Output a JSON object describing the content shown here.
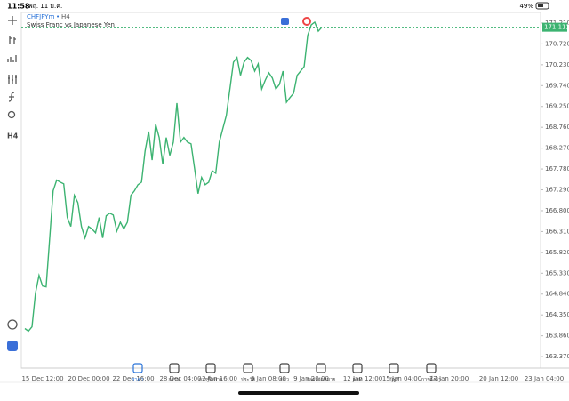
{
  "status_bar": {
    "time": "11:58",
    "date": "พฤ. 11 ม.ค.",
    "battery": "49%"
  },
  "chart": {
    "type": "line",
    "symbol": "CHFJPYm",
    "timeframe": "H4",
    "description": "Swiss Franc vs Japanese Yen",
    "color": "#3cb371",
    "values": [
      164.03,
      163.97,
      164.07,
      164.86,
      165.28,
      165.03,
      165.01,
      166.12,
      167.27,
      167.52,
      167.47,
      167.43,
      166.64,
      166.43,
      167.16,
      166.99,
      166.43,
      166.16,
      166.43,
      166.37,
      166.28,
      166.64,
      166.16,
      166.68,
      166.74,
      166.7,
      166.32,
      166.53,
      166.37,
      166.53,
      167.16,
      167.27,
      167.41,
      167.47,
      168.2,
      168.66,
      167.99,
      168.83,
      168.52,
      167.89,
      168.52,
      168.1,
      168.41,
      169.33,
      168.41,
      168.52,
      168.41,
      168.37,
      167.79,
      167.2,
      167.58,
      167.41,
      167.47,
      167.74,
      167.68,
      168.41,
      168.73,
      169.04,
      169.66,
      170.29,
      170.4,
      169.98,
      170.29,
      170.4,
      170.33,
      170.08,
      170.25,
      169.66,
      169.87,
      170.04,
      169.92,
      169.66,
      169.77,
      170.08,
      169.35,
      169.46,
      169.56,
      169.98,
      170.08,
      170.19,
      170.92,
      171.17,
      171.23,
      171.02,
      171.11
    ],
    "last_price": 171.112,
    "ylim": [
      163.1,
      171.46
    ],
    "yticks": [
      {
        "value": 171.21,
        "label": "171.210"
      },
      {
        "value": 170.72,
        "label": "170.720"
      },
      {
        "value": 170.23,
        "label": "170.230"
      },
      {
        "value": 169.74,
        "label": "169.740"
      },
      {
        "value": 169.25,
        "label": "169.250"
      },
      {
        "value": 168.76,
        "label": "168.760"
      },
      {
        "value": 168.27,
        "label": "168.270"
      },
      {
        "value": 167.78,
        "label": "167.780"
      },
      {
        "value": 167.29,
        "label": "167.290"
      },
      {
        "value": 166.8,
        "label": "166.800"
      },
      {
        "value": 166.31,
        "label": "166.310"
      },
      {
        "value": 165.82,
        "label": "165.820"
      },
      {
        "value": 165.33,
        "label": "165.330"
      },
      {
        "value": 164.84,
        "label": "164.840"
      },
      {
        "value": 164.35,
        "label": "164.350"
      },
      {
        "value": 163.86,
        "label": "163.860"
      },
      {
        "value": 163.37,
        "label": "163.370"
      }
    ],
    "xlabels": [
      "15 Dec 12:00",
      "20 Dec 00:00",
      "22 Dec 16:00",
      "28 Dec 04:00",
      "2 Jan 16:00",
      "5 Jan 08:00",
      "9 Jan 20:00",
      "12 Jan 12:00",
      "15 Jan 04:00",
      "17 Jan 20:00",
      "20 Jan 12:00",
      "23 Jan 04:00"
    ]
  },
  "toolbar": {
    "timeframe": "H4"
  },
  "tabs": [
    "ราคา",
    "กราฟ",
    "การซื้อขาย",
    "ประวัติ",
    "ข่าว",
    "กล่องจดหมาย",
    "แชท",
    "บัญชี",
    "การตั้งค่า"
  ]
}
